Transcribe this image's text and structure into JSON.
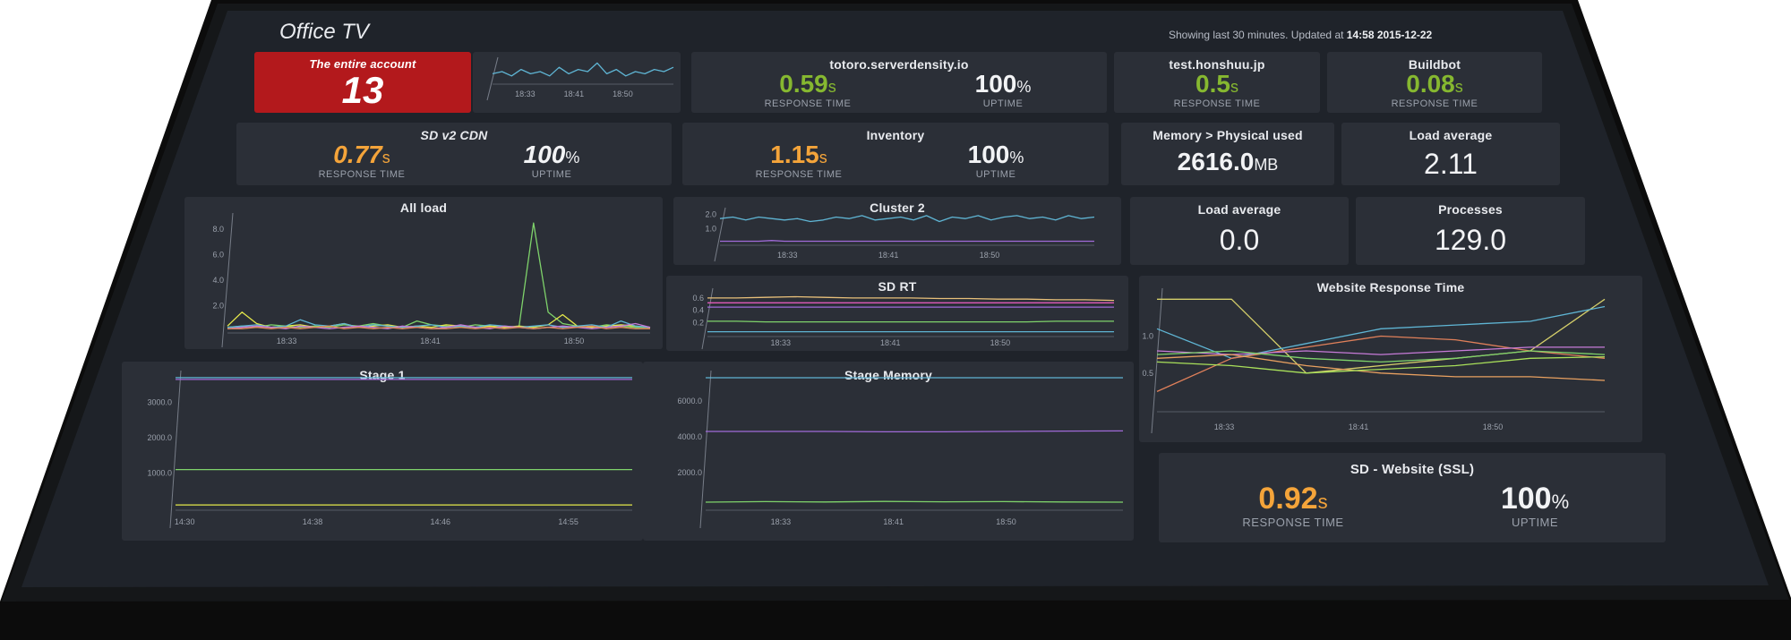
{
  "header": {
    "title": "Office TV",
    "updated_prefix": "Showing last 30 minutes. Updated at ",
    "updated_time": "14:58 2015-12-22"
  },
  "colors": {
    "bg": "#2b2f37",
    "screen": "#1f232a",
    "bezel": "#111111",
    "alert": "#b3191c",
    "green": "#86b830",
    "orange": "#f4a43a",
    "white": "#f2f3f5",
    "muted": "#9aa0ab"
  },
  "tiles": {
    "account": {
      "title": "The entire account",
      "value": "13"
    },
    "spark": {
      "ticks": [
        "18:33",
        "18:41",
        "18:50"
      ]
    },
    "totoro": {
      "title": "totoro.serverdensity.io",
      "response_value": "0.59",
      "response_unit": "s",
      "response_label": "RESPONSE TIME",
      "uptime_value": "100",
      "uptime_unit": "%",
      "uptime_label": "UPTIME"
    },
    "honshuu": {
      "title": "test.honshuu.jp",
      "response_value": "0.5",
      "response_unit": "s",
      "response_label": "RESPONSE TIME"
    },
    "buildbot": {
      "title": "Buildbot",
      "response_value": "0.08",
      "response_unit": "s",
      "response_label": "RESPONSE TIME"
    },
    "sdcdn": {
      "title": "SD v2 CDN",
      "response_value": "0.77",
      "response_unit": "s",
      "response_label": "RESPONSE TIME",
      "uptime_value": "100",
      "uptime_unit": "%",
      "uptime_label": "UPTIME"
    },
    "inventory": {
      "title": "Inventory",
      "response_value": "1.15",
      "response_unit": "s",
      "response_label": "RESPONSE TIME",
      "uptime_value": "100",
      "uptime_unit": "%",
      "uptime_label": "UPTIME"
    },
    "memory": {
      "title": "Memory > Physical used",
      "value": "2616.0",
      "unit": "MB"
    },
    "load1": {
      "title": "Load average",
      "value": "2.11"
    },
    "load2": {
      "title": "Load average",
      "value": "0.0"
    },
    "processes": {
      "title": "Processes",
      "value": "129.0"
    },
    "ssl": {
      "title": "SD - Website (SSL)",
      "response_value": "0.92",
      "response_unit": "s",
      "response_label": "RESPONSE TIME",
      "uptime_value": "100",
      "uptime_unit": "%",
      "uptime_label": "UPTIME"
    }
  },
  "chart_data": [
    {
      "id": "all_load",
      "type": "line",
      "title": "All load",
      "yticks": [
        "2.0",
        "4.0",
        "6.0",
        "8.0"
      ],
      "ylim": [
        0,
        9
      ],
      "xticks": [
        "18:33",
        "18:41",
        "18:50"
      ],
      "series": [
        {
          "color": "#7fd36b",
          "values": [
            0.3,
            0.4,
            0.3,
            0.5,
            0.4,
            0.3,
            0.4,
            0.3,
            0.5,
            0.4,
            0.6,
            0.4,
            0.3,
            0.8,
            0.5,
            0.4,
            0.3,
            0.5,
            0.4,
            0.3,
            0.3,
            8.5,
            1.5,
            0.6,
            0.4,
            0.3,
            0.5,
            0.4,
            0.3,
            0.3
          ]
        },
        {
          "color": "#e5e84a",
          "values": [
            0.4,
            1.5,
            0.6,
            0.3,
            0.4,
            0.5,
            0.3,
            0.4,
            0.6,
            0.3,
            0.4,
            0.5,
            0.3,
            0.4,
            0.3,
            0.5,
            0.4,
            0.3,
            0.4,
            0.3,
            0.4,
            0.3,
            0.5,
            1.3,
            0.4,
            0.3,
            0.4,
            0.5,
            0.4,
            0.3
          ]
        },
        {
          "color": "#5fb5d4",
          "values": [
            0.3,
            0.4,
            0.5,
            0.3,
            0.4,
            0.9,
            0.5,
            0.4,
            0.6,
            0.3,
            0.5,
            0.4,
            0.3,
            0.4,
            0.5,
            0.3,
            0.4,
            0.3,
            0.5,
            0.4,
            0.3,
            0.4,
            0.5,
            0.3,
            0.4,
            0.5,
            0.3,
            0.8,
            0.4,
            0.3
          ]
        },
        {
          "color": "#c77bd8",
          "values": [
            0.2,
            0.3,
            0.4,
            0.3,
            0.2,
            0.4,
            0.3,
            0.2,
            0.3,
            0.4,
            0.3,
            0.2,
            0.4,
            0.3,
            0.2,
            0.3,
            0.5,
            0.3,
            0.2,
            0.4,
            0.3,
            0.2,
            0.3,
            0.4,
            0.3,
            0.2,
            0.3,
            0.4,
            0.6,
            0.3
          ]
        },
        {
          "color": "#e08a5a",
          "values": [
            0.2,
            0.2,
            0.3,
            0.2,
            0.3,
            0.2,
            0.3,
            0.4,
            0.2,
            0.3,
            0.2,
            0.3,
            0.2,
            0.3,
            0.2,
            0.2,
            0.3,
            0.2,
            0.3,
            0.2,
            0.3,
            0.2,
            0.3,
            0.2,
            0.3,
            0.4,
            0.2,
            0.3,
            0.2,
            0.2
          ]
        }
      ]
    },
    {
      "id": "cluster2",
      "type": "line",
      "title": "Cluster 2",
      "yticks": [
        "1.0",
        "2.0"
      ],
      "ylim": [
        0,
        2.2
      ],
      "xticks": [
        "18:33",
        "18:41",
        "18:50"
      ],
      "series": [
        {
          "color": "#5fb5d4",
          "values": [
            1.7,
            1.8,
            1.6,
            1.8,
            1.7,
            1.6,
            1.7,
            1.5,
            1.6,
            1.8,
            1.7,
            1.9,
            1.6,
            1.7,
            1.8,
            1.6,
            1.9,
            1.5,
            1.8,
            1.7,
            1.9,
            1.6,
            1.8,
            1.9,
            1.7,
            1.8,
            1.6,
            1.9,
            1.7,
            1.8
          ]
        },
        {
          "color": "#a06ad8",
          "values": [
            0.15,
            0.15,
            0.15,
            0.15,
            0.2,
            0.15,
            0.15,
            0.15,
            0.15,
            0.15,
            0.15,
            0.15,
            0.15,
            0.15,
            0.15,
            0.15,
            0.15,
            0.15,
            0.15,
            0.15,
            0.15,
            0.15,
            0.15,
            0.15,
            0.15,
            0.15,
            0.15,
            0.15,
            0.15,
            0.15
          ]
        }
      ]
    },
    {
      "id": "sdrt",
      "type": "line",
      "title": "SD RT",
      "yticks": [
        "0.2",
        "0.4",
        "0.6"
      ],
      "ylim": [
        0,
        0.7
      ],
      "xticks": [
        "18:33",
        "18:41",
        "18:50"
      ],
      "series": [
        {
          "color": "#e8c07a",
          "values": [
            0.6,
            0.6,
            0.61,
            0.62,
            0.61,
            0.6,
            0.6,
            0.6,
            0.59,
            0.59,
            0.58,
            0.58,
            0.57,
            0.57,
            0.56
          ]
        },
        {
          "color": "#e05ab8",
          "values": [
            0.52,
            0.52,
            0.52,
            0.52,
            0.52,
            0.52,
            0.52,
            0.52,
            0.52,
            0.52,
            0.52,
            0.52,
            0.52,
            0.52,
            0.52
          ]
        },
        {
          "color": "#a06ad8",
          "values": [
            0.45,
            0.45,
            0.45,
            0.45,
            0.45,
            0.45,
            0.45,
            0.45,
            0.45,
            0.45,
            0.45,
            0.45,
            0.45,
            0.45,
            0.45
          ]
        },
        {
          "color": "#7fd36b",
          "values": [
            0.22,
            0.22,
            0.21,
            0.21,
            0.21,
            0.21,
            0.21,
            0.21,
            0.21,
            0.21,
            0.21,
            0.21,
            0.22,
            0.22,
            0.22
          ]
        },
        {
          "color": "#5fb5d4",
          "values": [
            0.05,
            0.05,
            0.05,
            0.05,
            0.05,
            0.05,
            0.05,
            0.05,
            0.05,
            0.05,
            0.05,
            0.05,
            0.05,
            0.05,
            0.05
          ]
        }
      ]
    },
    {
      "id": "website_rt",
      "type": "line",
      "title": "Website Response Time",
      "yticks": [
        "0.5",
        "1.0"
      ],
      "ylim": [
        0,
        1.6
      ],
      "xticks": [
        "18:33",
        "18:41",
        "18:50"
      ],
      "series": [
        {
          "color": "#d5cf6a",
          "values": [
            1.5,
            1.5,
            0.5,
            0.6,
            0.7,
            0.8,
            1.5
          ]
        },
        {
          "color": "#5fb5d4",
          "values": [
            1.1,
            0.7,
            0.9,
            1.1,
            1.15,
            1.2,
            1.4
          ]
        },
        {
          "color": "#e0805a",
          "values": [
            0.25,
            0.7,
            0.85,
            1.0,
            0.95,
            0.8,
            0.7
          ]
        },
        {
          "color": "#c77bd8",
          "values": [
            0.8,
            0.75,
            0.8,
            0.75,
            0.8,
            0.85,
            0.85
          ]
        },
        {
          "color": "#7fd36b",
          "values": [
            0.75,
            0.8,
            0.7,
            0.65,
            0.7,
            0.8,
            0.75
          ]
        },
        {
          "color": "#e8a060",
          "values": [
            0.7,
            0.75,
            0.6,
            0.5,
            0.45,
            0.45,
            0.4
          ]
        },
        {
          "color": "#a9e05a",
          "values": [
            0.65,
            0.6,
            0.5,
            0.55,
            0.6,
            0.7,
            0.72
          ]
        }
      ]
    },
    {
      "id": "stage1",
      "type": "line",
      "title": "Stage 1",
      "yticks": [
        "1000.0",
        "2000.0",
        "3000.0"
      ],
      "ylim": [
        0,
        3800
      ],
      "xticks": [
        "14:30",
        "14:38",
        "14:46",
        "14:55"
      ],
      "series": [
        {
          "color": "#5fb5d4",
          "values": [
            3700,
            3700,
            3700,
            3700,
            3700,
            3700,
            3700,
            3700
          ]
        },
        {
          "color": "#a06ad8",
          "values": [
            3650,
            3650,
            3650,
            3650,
            3650,
            3650,
            3650,
            3650
          ]
        },
        {
          "color": "#7fd36b",
          "values": [
            1100,
            1100,
            1100,
            1100,
            1100,
            1100,
            1100,
            1100
          ]
        },
        {
          "color": "#e5e84a",
          "values": [
            100,
            100,
            100,
            100,
            100,
            100,
            100,
            100
          ]
        }
      ]
    },
    {
      "id": "stage_memory",
      "type": "line",
      "title": "Stage Memory",
      "yticks": [
        "2000.0",
        "4000.0",
        "6000.0"
      ],
      "ylim": [
        0,
        7500
      ],
      "xticks": [
        "18:33",
        "18:41",
        "18:50"
      ],
      "series": [
        {
          "color": "#5fb5d4",
          "values": [
            7300,
            7300,
            7300,
            7300,
            7300,
            7300,
            7300,
            7300
          ]
        },
        {
          "color": "#a06ad8",
          "values": [
            4300,
            4300,
            4300,
            4280,
            4280,
            4300,
            4320,
            4330
          ]
        },
        {
          "color": "#7fd36b",
          "values": [
            350,
            380,
            360,
            390,
            370,
            380,
            360,
            350
          ]
        }
      ]
    },
    {
      "id": "sparkline",
      "type": "line",
      "title": "",
      "xticks": [
        "18:33",
        "18:41",
        "18:50"
      ],
      "ylim": [
        0,
        1
      ],
      "series": [
        {
          "color": "#5fb5d4",
          "values": [
            0.4,
            0.5,
            0.3,
            0.6,
            0.4,
            0.5,
            0.3,
            0.7,
            0.4,
            0.6,
            0.5,
            0.9,
            0.4,
            0.6,
            0.3,
            0.5,
            0.4,
            0.6,
            0.5,
            0.7
          ]
        }
      ]
    }
  ]
}
